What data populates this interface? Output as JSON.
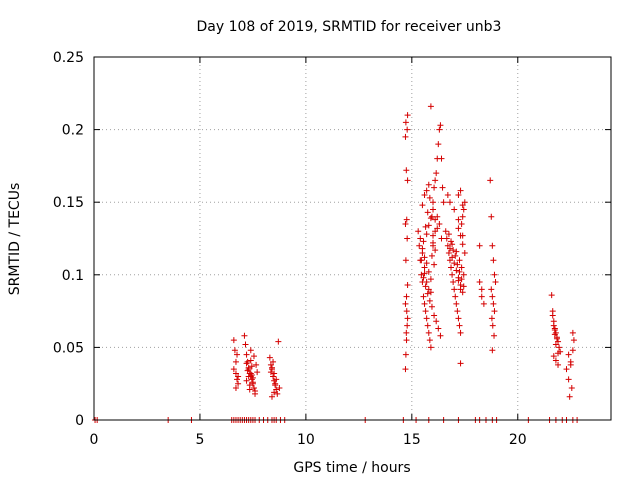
{
  "chart_data": {
    "type": "scatter",
    "title": "Day 108 of 2019, SRMTID for receiver unb3",
    "xlabel": "GPS time / hours",
    "ylabel": "SRMTID / TECUs",
    "xlim": [
      0,
      24.4
    ],
    "ylim": [
      0,
      0.25
    ],
    "xticks": [
      0,
      5,
      10,
      15,
      20
    ],
    "xtick_labels": [
      "0",
      "5",
      "10",
      "15",
      "20"
    ],
    "yticks": [
      0,
      0.05,
      0.1,
      0.15,
      0.2,
      0.25
    ],
    "ytick_labels": [
      "0",
      "0.05",
      "0.1",
      "0.15",
      "0.2",
      "0.25"
    ],
    "grid": true,
    "marker": "+",
    "color": "#d40000",
    "series": [
      {
        "name": "SRMTID",
        "x": [
          0.05,
          0.15,
          3.5,
          4.6,
          6.5,
          6.6,
          6.7,
          6.8,
          6.9,
          7.0,
          7.1,
          7.2,
          7.3,
          7.4,
          7.5,
          7.6,
          7.8,
          8.0,
          8.2,
          8.4,
          8.5,
          8.6,
          8.8,
          9.0,
          12.8,
          14.6,
          15.2,
          15.8,
          16.5,
          17.2,
          18.0,
          18.2,
          18.5,
          18.8,
          19.0,
          20.5,
          21.5,
          21.8,
          22.1,
          22.3,
          22.6,
          22.8,
          6.6,
          6.65,
          6.7,
          6.7,
          6.75,
          6.8,
          6.6,
          6.7,
          6.8,
          6.75,
          7.1,
          7.15,
          7.2,
          7.25,
          7.3,
          7.35,
          7.4,
          7.45,
          7.5,
          7.55,
          7.6,
          7.65,
          7.7,
          7.2,
          7.3,
          7.4,
          7.5,
          7.35,
          7.45,
          7.25,
          7.6,
          7.4,
          7.3,
          7.5,
          7.45,
          7.35,
          7.55,
          7.2,
          7.4,
          8.3,
          8.35,
          8.4,
          8.45,
          8.5,
          8.55,
          8.6,
          8.65,
          8.7,
          8.4,
          8.5,
          8.6,
          8.45,
          8.55,
          8.35,
          8.75,
          8.5,
          8.4,
          14.7,
          14.72,
          14.75,
          14.78,
          14.8,
          14.7,
          14.75,
          14.8,
          14.72,
          14.78,
          14.7,
          14.76,
          14.8,
          14.74,
          14.7,
          14.78,
          14.72,
          14.8,
          14.76,
          14.74,
          15.3,
          15.35,
          15.4,
          15.45,
          15.5,
          15.55,
          15.6,
          15.65,
          15.7,
          15.75,
          15.8,
          15.85,
          15.9,
          15.95,
          16.0,
          16.05,
          16.1,
          16.15,
          16.2,
          16.25,
          16.3,
          16.35,
          16.4,
          16.45,
          16.5,
          15.4,
          15.5,
          15.6,
          15.7,
          15.8,
          15.9,
          16.0,
          16.1,
          16.2,
          16.3,
          16.4,
          15.45,
          15.55,
          15.65,
          15.75,
          15.85,
          15.95,
          16.05,
          16.15,
          16.25,
          16.35,
          15.5,
          15.6,
          15.7,
          15.8,
          15.9,
          16.0,
          16.1,
          16.2,
          15.5,
          15.6,
          15.7,
          15.8,
          15.9,
          16.0,
          16.1,
          15.55,
          15.65,
          15.75,
          15.85,
          15.95,
          16.05,
          15.6,
          15.7,
          15.8,
          15.9,
          16.0,
          16.6,
          16.65,
          16.7,
          16.75,
          16.8,
          16.85,
          16.9,
          16.95,
          17.0,
          17.05,
          17.1,
          17.15,
          17.2,
          17.25,
          17.3,
          17.35,
          17.4,
          17.45,
          17.5,
          16.7,
          16.8,
          16.9,
          17.0,
          17.1,
          17.2,
          17.3,
          17.4,
          16.75,
          16.85,
          16.95,
          17.05,
          17.15,
          17.25,
          17.35,
          17.45,
          16.8,
          17.0,
          17.2,
          17.4,
          16.9,
          17.1,
          17.3,
          17.2,
          17.3,
          17.4,
          17.5,
          17.2,
          17.3,
          17.4,
          17.25,
          17.35,
          17.45,
          17.2,
          17.3,
          18.2,
          18.3,
          18.4,
          18.2,
          18.3,
          18.7,
          18.75,
          18.8,
          18.85,
          18.9,
          18.95,
          18.75,
          18.8,
          18.85,
          18.9,
          18.78,
          18.82,
          18.88,
          18.8,
          21.6,
          21.65,
          21.7,
          21.75,
          21.8,
          21.85,
          21.9,
          21.95,
          22.0,
          21.7,
          21.8,
          21.9,
          21.75,
          21.85,
          21.65,
          21.8,
          21.7,
          21.9,
          21.75,
          22.3,
          22.4,
          22.5,
          22.6,
          22.65,
          22.4,
          22.5,
          22.6,
          22.55,
          22.45
        ],
        "y": [
          0,
          0,
          0,
          0,
          0,
          0,
          0,
          0,
          0,
          0,
          0,
          0,
          0,
          0,
          0,
          0,
          0,
          0,
          0,
          0,
          0,
          0,
          0,
          0,
          0,
          0,
          0,
          0,
          0,
          0,
          0,
          0,
          0,
          0,
          0,
          0,
          0,
          0,
          0,
          0,
          0,
          0,
          0.055,
          0.048,
          0.04,
          0.032,
          0.028,
          0.025,
          0.035,
          0.022,
          0.03,
          0.045,
          0.058,
          0.052,
          0.045,
          0.04,
          0.035,
          0.032,
          0.03,
          0.028,
          0.025,
          0.022,
          0.02,
          0.038,
          0.033,
          0.027,
          0.036,
          0.041,
          0.029,
          0.024,
          0.031,
          0.034,
          0.018,
          0.048,
          0.03,
          0.026,
          0.037,
          0.021,
          0.044,
          0.039,
          0.032,
          0.043,
          0.038,
          0.035,
          0.03,
          0.027,
          0.024,
          0.021,
          0.018,
          0.054,
          0.016,
          0.032,
          0.028,
          0.04,
          0.025,
          0.033,
          0.022,
          0.019,
          0.036,
          0.035,
          0.045,
          0.055,
          0.065,
          0.07,
          0.08,
          0.085,
          0.093,
          0.11,
          0.125,
          0.135,
          0.138,
          0.165,
          0.172,
          0.195,
          0.2,
          0.205,
          0.21,
          0.075,
          0.06,
          0.13,
          0.12,
          0.11,
          0.1,
          0.095,
          0.085,
          0.08,
          0.075,
          0.07,
          0.065,
          0.06,
          0.055,
          0.05,
          0.14,
          0.15,
          0.16,
          0.165,
          0.17,
          0.18,
          0.19,
          0.2,
          0.203,
          0.18,
          0.16,
          0.15,
          0.125,
          0.115,
          0.105,
          0.095,
          0.09,
          0.088,
          0.12,
          0.13,
          0.14,
          0.135,
          0.125,
          0.11,
          0.098,
          0.092,
          0.087,
          0.082,
          0.078,
          0.072,
          0.068,
          0.063,
          0.058,
          0.148,
          0.155,
          0.158,
          0.162,
          0.216,
          0.145,
          0.138,
          0.132,
          0.118,
          0.112,
          0.108,
          0.102,
          0.097,
          0.127,
          0.117,
          0.123,
          0.133,
          0.143,
          0.153,
          0.113,
          0.107,
          0.101,
          0.128,
          0.134,
          0.139,
          0.122,
          0.13,
          0.125,
          0.12,
          0.115,
          0.11,
          0.105,
          0.1,
          0.095,
          0.09,
          0.085,
          0.08,
          0.075,
          0.07,
          0.065,
          0.06,
          0.135,
          0.14,
          0.145,
          0.15,
          0.155,
          0.118,
          0.112,
          0.108,
          0.103,
          0.098,
          0.093,
          0.088,
          0.128,
          0.123,
          0.117,
          0.113,
          0.107,
          0.102,
          0.097,
          0.092,
          0.15,
          0.145,
          0.138,
          0.127,
          0.121,
          0.116,
          0.039,
          0.132,
          0.127,
          0.121,
          0.115,
          0.155,
          0.158,
          0.148,
          0.11,
          0.105,
          0.1,
          0.096,
          0.09,
          0.12,
          0.09,
          0.08,
          0.095,
          0.085,
          0.165,
          0.14,
          0.12,
          0.11,
          0.1,
          0.095,
          0.09,
          0.085,
          0.08,
          0.075,
          0.07,
          0.065,
          0.058,
          0.048,
          0.086,
          0.075,
          0.068,
          0.063,
          0.06,
          0.057,
          0.054,
          0.05,
          0.047,
          0.044,
          0.041,
          0.038,
          0.062,
          0.056,
          0.072,
          0.052,
          0.065,
          0.046,
          0.059,
          0.035,
          0.028,
          0.04,
          0.048,
          0.055,
          0.045,
          0.038,
          0.06,
          0.022,
          0.016
        ]
      }
    ]
  }
}
